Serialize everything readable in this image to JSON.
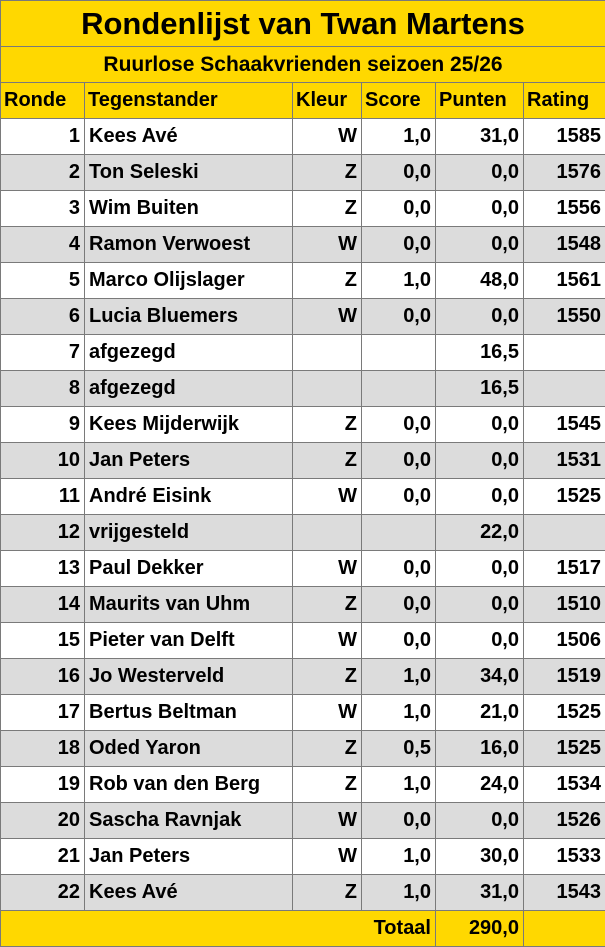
{
  "title": "Rondenlijst van Twan Martens",
  "subtitle": "Ruurlose Schaakvrienden seizoen 25/26",
  "headers": [
    "Ronde",
    "Tegenstander",
    "Kleur",
    "Score",
    "Punten",
    "Rating"
  ],
  "rows": [
    [
      "1",
      "Kees Avé",
      "W",
      "1,0",
      "31,0",
      "1585"
    ],
    [
      "2",
      "Ton Seleski",
      "Z",
      "0,0",
      "0,0",
      "1576"
    ],
    [
      "3",
      "Wim Buiten",
      "Z",
      "0,0",
      "0,0",
      "1556"
    ],
    [
      "4",
      "Ramon Verwoest",
      "W",
      "0,0",
      "0,0",
      "1548"
    ],
    [
      "5",
      "Marco Olijslager",
      "Z",
      "1,0",
      "48,0",
      "1561"
    ],
    [
      "6",
      "Lucia Bluemers",
      "W",
      "0,0",
      "0,0",
      "1550"
    ],
    [
      "7",
      "afgezegd",
      "",
      "",
      "16,5",
      ""
    ],
    [
      "8",
      "afgezegd",
      "",
      "",
      "16,5",
      ""
    ],
    [
      "9",
      "Kees Mijderwijk",
      "Z",
      "0,0",
      "0,0",
      "1545"
    ],
    [
      "10",
      "Jan Peters",
      "Z",
      "0,0",
      "0,0",
      "1531"
    ],
    [
      "11",
      "André Eisink",
      "W",
      "0,0",
      "0,0",
      "1525"
    ],
    [
      "12",
      "vrijgesteld",
      "",
      "",
      "22,0",
      ""
    ],
    [
      "13",
      "Paul Dekker",
      "W",
      "0,0",
      "0,0",
      "1517"
    ],
    [
      "14",
      "Maurits van Uhm",
      "Z",
      "0,0",
      "0,0",
      "1510"
    ],
    [
      "15",
      "Pieter van Delft",
      "W",
      "0,0",
      "0,0",
      "1506"
    ],
    [
      "16",
      "Jo Westerveld",
      "Z",
      "1,0",
      "34,0",
      "1519"
    ],
    [
      "17",
      "Bertus Beltman",
      "W",
      "1,0",
      "21,0",
      "1525"
    ],
    [
      "18",
      "Oded Yaron",
      "Z",
      "0,5",
      "16,0",
      "1525"
    ],
    [
      "19",
      "Rob van den Berg",
      "Z",
      "1,0",
      "24,0",
      "1534"
    ],
    [
      "20",
      "Sascha Ravnjak",
      "W",
      "0,0",
      "0,0",
      "1526"
    ],
    [
      "21",
      "Jan Peters",
      "W",
      "1,0",
      "30,0",
      "1533"
    ],
    [
      "22",
      "Kees Avé",
      "Z",
      "1,0",
      "31,0",
      "1543"
    ]
  ],
  "total": {
    "label": "Totaal",
    "value": "290,0"
  },
  "colors": {
    "header": "#ffd800",
    "row_alt": "#dcdcdc",
    "border": "#7a7a7a"
  }
}
